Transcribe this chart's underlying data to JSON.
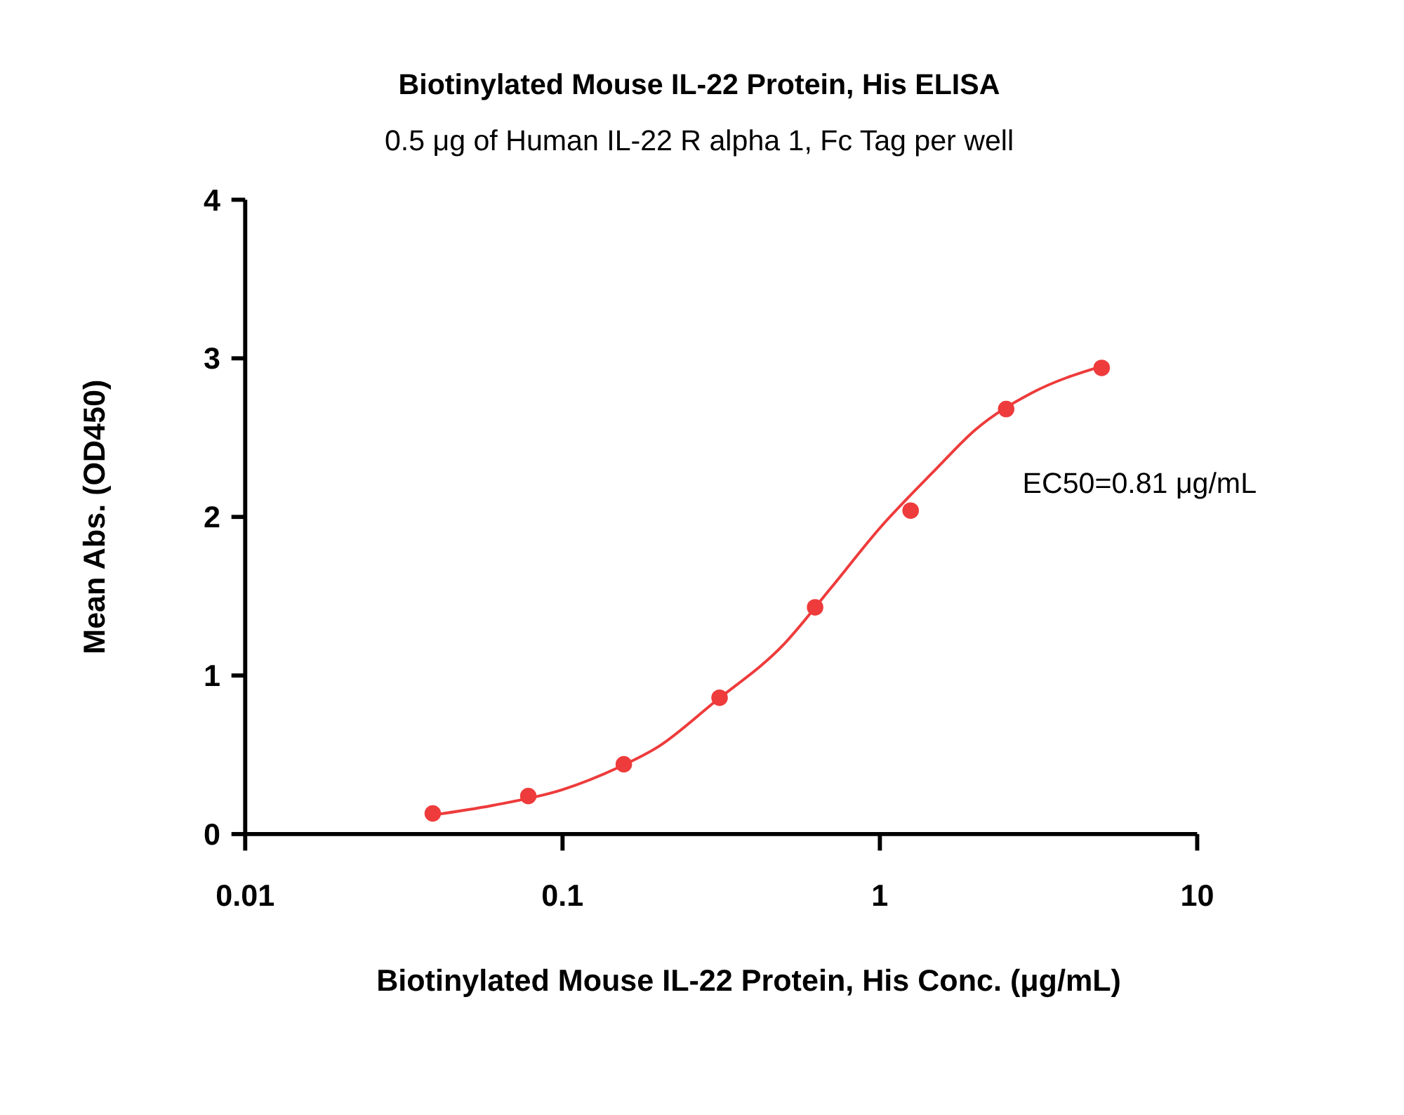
{
  "chart_data": {
    "type": "scatter",
    "title": "Biotinylated Mouse IL-22 Protein, His ELISA",
    "subtitle": "0.5 μg of Human IL-22 R alpha 1, Fc Tag per well",
    "xlabel": "Biotinylated Mouse IL-22 Protein, His Conc. (μg/mL)",
    "ylabel": "Mean Abs. (OD450)",
    "log": "x",
    "xlim": [
      0.01,
      10
    ],
    "xticks": [
      0.01,
      0.1,
      1,
      10
    ],
    "ylim": [
      0,
      4
    ],
    "yticks": [
      0,
      1,
      2,
      3,
      4
    ],
    "grid": false,
    "annotations": [
      "EC50=0.81 μg/mL"
    ],
    "series": [
      {
        "color": "#ee3b3b",
        "marker": "circle",
        "x": [
          0.039,
          0.078,
          0.156,
          0.3125,
          0.625,
          1.25,
          2.5,
          5
        ],
        "values": [
          0.13,
          0.24,
          0.44,
          0.86,
          1.43,
          2.04,
          2.68,
          2.94
        ]
      },
      {
        "type": "line",
        "color": "#ee3b3b",
        "marker": "none",
        "line_style": "solid",
        "x": [
          0.039,
          0.06,
          0.1,
          0.15,
          0.2,
          0.3,
          0.5,
          0.7,
          1,
          1.5,
          2,
          3,
          5
        ],
        "values": [
          0.12,
          0.18,
          0.28,
          0.42,
          0.55,
          0.83,
          1.2,
          1.55,
          1.93,
          2.3,
          2.55,
          2.78,
          2.95
        ]
      }
    ]
  }
}
